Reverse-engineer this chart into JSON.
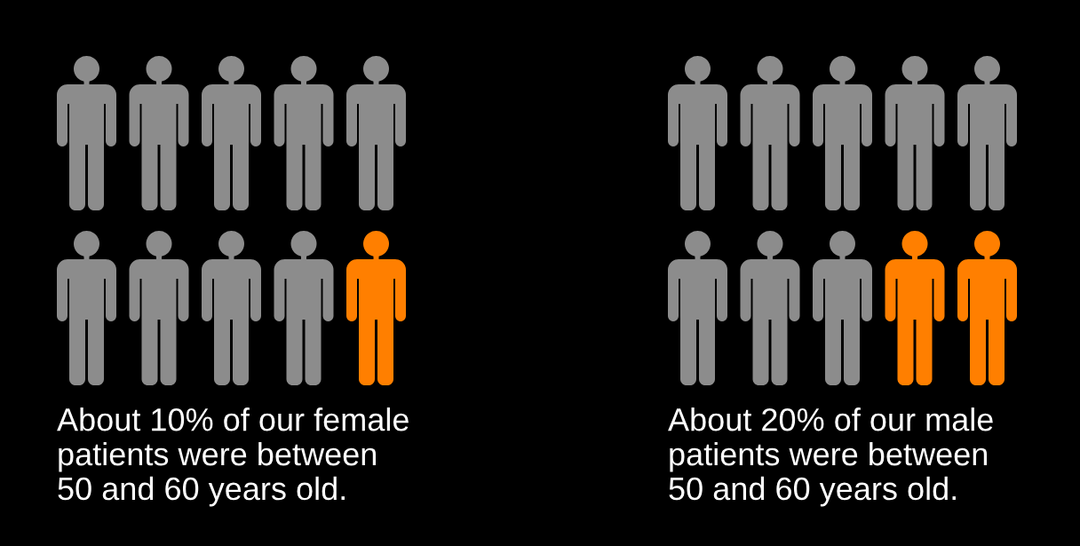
{
  "chart_data": [
    {
      "type": "other",
      "values": [
        10
      ],
      "colors": [
        "#ff7f00"
      ],
      "value_labels": [
        "About 10% of our female\npatients were between\n50 and 60 years old."
      ]
    },
    {
      "type": "other",
      "values": [
        20
      ],
      "colors": [
        "#ff7f00"
      ],
      "value_labels": [
        "About 20% of our male\npatients were between\n50 and 60 years old."
      ]
    }
  ]
}
